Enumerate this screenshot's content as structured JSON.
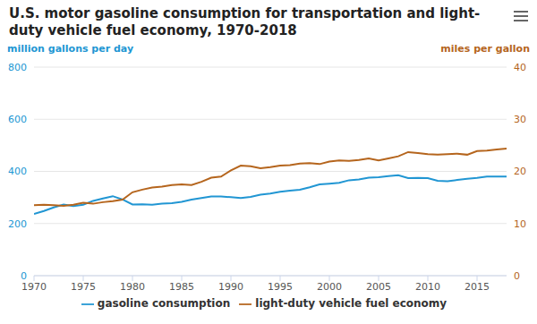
{
  "chart_data": {
    "type": "line",
    "title": "U.S. motor gasoline consumption for transportation and light-duty vehicle fuel economy, 1970-2018",
    "y_label": "million gallons per day",
    "y2_label": "miles per gallon",
    "x": [
      1970,
      1971,
      1972,
      1973,
      1974,
      1975,
      1976,
      1977,
      1978,
      1979,
      1980,
      1981,
      1982,
      1983,
      1984,
      1985,
      1986,
      1987,
      1988,
      1989,
      1990,
      1991,
      1992,
      1993,
      1994,
      1995,
      1996,
      1997,
      1998,
      1999,
      2000,
      2001,
      2002,
      2003,
      2004,
      2005,
      2006,
      2007,
      2008,
      2009,
      2010,
      2011,
      2012,
      2013,
      2014,
      2015,
      2016,
      2017,
      2018
    ],
    "xlim": [
      1970,
      2018
    ],
    "xticks": [
      1970,
      1975,
      1980,
      1985,
      1990,
      1995,
      2000,
      2005,
      2010,
      2015
    ],
    "ylim": [
      0,
      800
    ],
    "yticks": [
      0,
      200,
      400,
      600,
      800
    ],
    "y2lim": [
      0,
      40
    ],
    "y2ticks": [
      0,
      10,
      20,
      30,
      40
    ],
    "grid": true,
    "legend": "bottom",
    "series": [
      {
        "name": "gasoline consumption",
        "color": "#2196d3",
        "values": [
          237,
          248,
          262,
          273,
          267,
          272,
          287,
          296,
          305,
          292,
          273,
          274,
          272,
          276,
          278,
          283,
          292,
          298,
          304,
          304,
          301,
          298,
          302,
          311,
          315,
          322,
          326,
          330,
          339,
          350,
          353,
          356,
          366,
          369,
          376,
          378,
          382,
          385,
          374,
          375,
          374,
          364,
          362,
          367,
          372,
          375,
          380,
          380,
          380
        ]
      },
      {
        "name": "light-duty vehicle fuel economy",
        "color": "#b5651d",
        "axis": "y2",
        "values": [
          13.5,
          13.6,
          13.5,
          13.4,
          13.6,
          14.0,
          13.8,
          14.1,
          14.3,
          14.6,
          16.0,
          16.5,
          16.9,
          17.1,
          17.4,
          17.5,
          17.4,
          18.0,
          18.8,
          19.0,
          20.2,
          21.1,
          21.0,
          20.6,
          20.8,
          21.1,
          21.2,
          21.5,
          21.6,
          21.4,
          21.9,
          22.1,
          22.0,
          22.2,
          22.5,
          22.1,
          22.5,
          22.9,
          23.7,
          23.5,
          23.3,
          23.2,
          23.3,
          23.4,
          23.2,
          23.9,
          24.0,
          24.2,
          24.4
        ]
      }
    ]
  }
}
